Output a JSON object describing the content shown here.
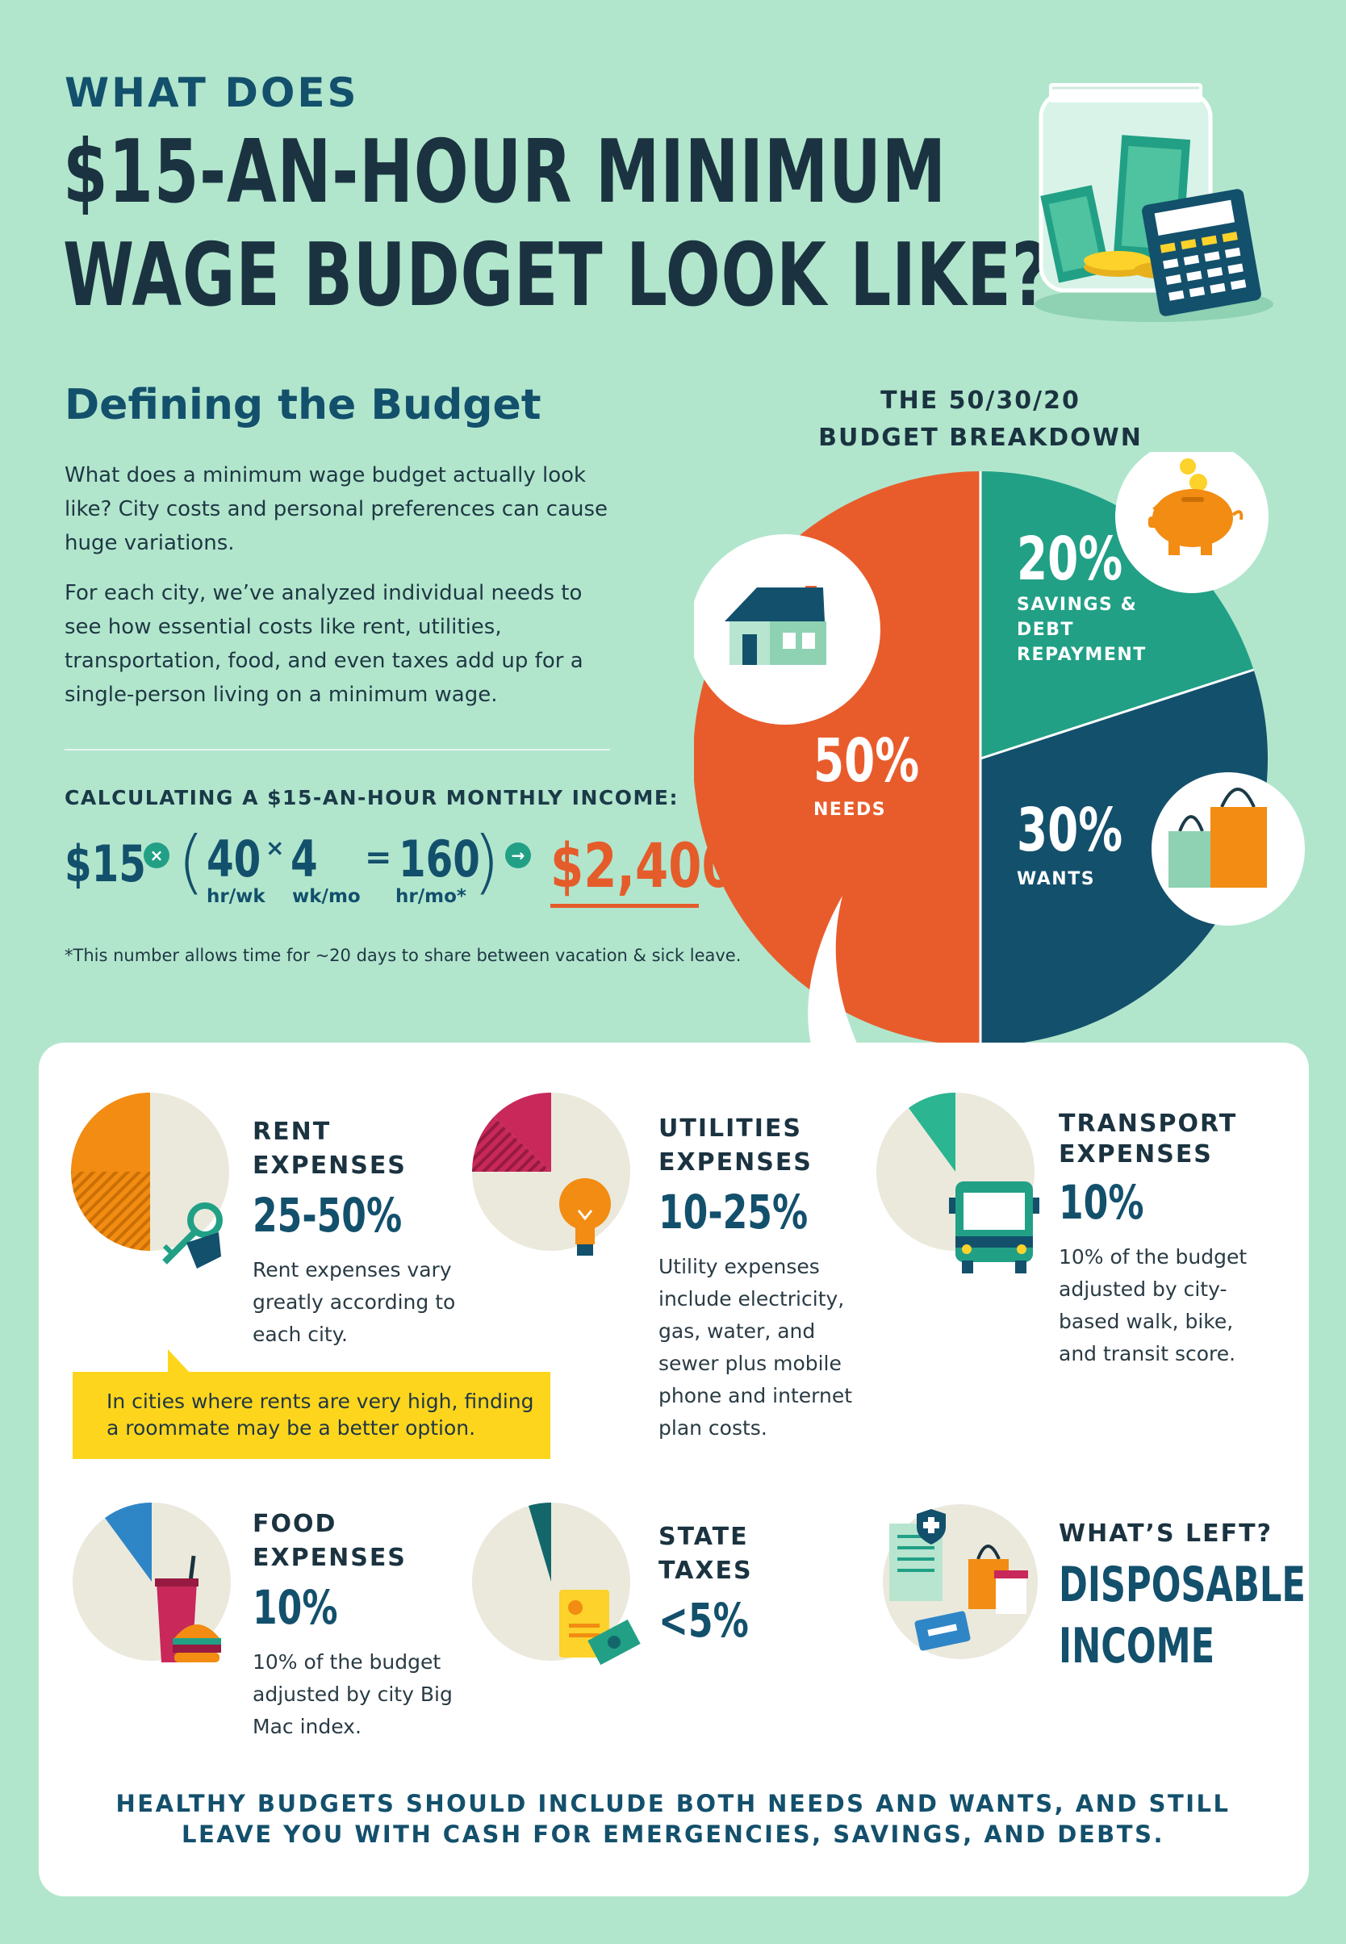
{
  "header": {
    "kicker": "WHAT DOES",
    "title_line1": "$15-AN-HOUR MINIMUM",
    "title_line2": "WAGE BUDGET LOOK LIKE?"
  },
  "intro": {
    "heading": "Defining the Budget",
    "paragraph1": "What does a minimum wage budget actually look like? City costs and personal preferences can cause huge variations.",
    "paragraph2": "For each city, we’ve analyzed individual needs to see how essential costs like rent, utilities, transportation, food, and even taxes add up for a single-person living on a minimum wage."
  },
  "calculation": {
    "heading": "CALCULATING A $15-AN-HOUR MONTHLY INCOME:",
    "wage": "$15",
    "times_symbol": "×",
    "hours_per_week": "40",
    "hours_per_week_unit": "hr/wk",
    "x_symbol": "×",
    "weeks_per_month": "4",
    "weeks_per_month_unit": "wk/mo",
    "equals": "=",
    "hours_per_month": "160",
    "hours_per_month_unit": "hr/mo*",
    "arrow_symbol": "→",
    "monthly_income": "$2,400",
    "footnote": "*This number allows time for ~20 days to share between vacation & sick leave."
  },
  "breakdown": {
    "title_line1": "THE 50/30/20",
    "title_line2": "BUDGET BREAKDOWN",
    "colors": {
      "needs": "#e85c2c",
      "savings": "#21a086",
      "wants": "#13506c"
    },
    "slices": [
      {
        "pct": "50%",
        "label": "NEEDS",
        "value": 50
      },
      {
        "pct": "20%",
        "label_line1": "SAVINGS &",
        "label_line2": "DEBT",
        "label_line3": "REPAYMENT",
        "value": 20
      },
      {
        "pct": "30%",
        "label": "WANTS",
        "value": 30
      }
    ]
  },
  "categories": {
    "rent": {
      "title_line1": "RENT",
      "title_line2": "EXPENSES",
      "pct": "25-50%",
      "description": "Rent expenses vary greatly according to each city."
    },
    "utilities": {
      "title_line1": "UTILITIES",
      "title_line2": "EXPENSES",
      "pct": "10-25%",
      "description": "Utility expenses include electricity, gas, water, and sewer plus mobile phone and internet plan costs."
    },
    "transport": {
      "title_line1": "TRANSPORT",
      "title_line2": "EXPENSES",
      "pct": "10%",
      "description": "10% of the budget adjusted by city-based walk, bike, and transit score."
    },
    "food": {
      "title_line1": "FOOD",
      "title_line2": "EXPENSES",
      "pct": "10%",
      "description": "10% of the budget adjusted by city Big Mac index."
    },
    "taxes": {
      "title_line1": "STATE",
      "title_line2": "TAXES",
      "pct": "<5%"
    },
    "left": {
      "title": "WHAT’S LEFT?",
      "big_line1": "DISPOSABLE",
      "big_line2": "INCOME"
    }
  },
  "tip": {
    "text": "In cities where rents are very high, finding a roommate may be a better option."
  },
  "closing": {
    "line1": "HEALTHY BUDGETS SHOULD INCLUDE BOTH NEEDS AND WANTS, AND STILL",
    "line2": "LEAVE YOU WITH CASH FOR EMERGENCIES, SAVINGS, AND DEBTS."
  }
}
